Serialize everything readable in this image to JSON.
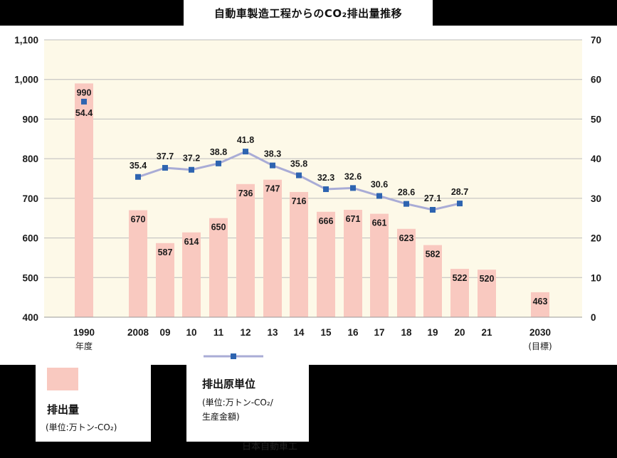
{
  "title": "自動車製造工程からのCO₂排出量推移",
  "colors": {
    "bar": "#f9c9c0",
    "line": "#a9acd6",
    "marker": "#2e64b0",
    "plot_bg": "#fdf9e8",
    "grid": "#bcbcbc"
  },
  "legend": {
    "bar_name": "排出量",
    "bar_unit": "(単位:万トン-CO₂)",
    "line_name": "排出原単位",
    "line_unit_1": "(単位:万トン-CO₂/",
    "line_unit_2": "生産金額)"
  },
  "source": "日本自動車工",
  "chart_data": {
    "type": "bar",
    "title": "自動車製造工程からのCO₂排出量推移",
    "categories": [
      "1990",
      "2008",
      "09",
      "10",
      "11",
      "12",
      "13",
      "14",
      "15",
      "16",
      "17",
      "18",
      "19",
      "20",
      "21",
      "2030"
    ],
    "category_sublabels": {
      "1990": "年度",
      "2030": "(目標)"
    },
    "series": [
      {
        "name": "排出量",
        "unit": "(単位:万トン-CO₂)",
        "type": "bar",
        "axis": "left",
        "values": [
          990,
          670,
          587,
          614,
          650,
          736,
          747,
          716,
          666,
          671,
          661,
          623,
          582,
          522,
          520,
          463
        ]
      },
      {
        "name": "排出原単位",
        "unit": "(単位:万トン-CO₂/生産金額)",
        "type": "line",
        "axis": "right",
        "values": [
          54.4,
          35.4,
          37.7,
          37.2,
          38.8,
          41.8,
          38.3,
          35.8,
          32.3,
          32.6,
          30.6,
          28.6,
          27.1,
          28.7,
          null,
          null
        ]
      }
    ],
    "ylim_left": [
      400,
      1100
    ],
    "yticks_left": [
      "400",
      "500",
      "600",
      "700",
      "800",
      "900",
      "1,000",
      "1,100"
    ],
    "ylim_right": [
      0,
      70
    ],
    "yticks_right": [
      "0",
      "10",
      "20",
      "30",
      "40",
      "50",
      "60",
      "70"
    ],
    "grid": true,
    "legend_position": "bottom-left"
  }
}
